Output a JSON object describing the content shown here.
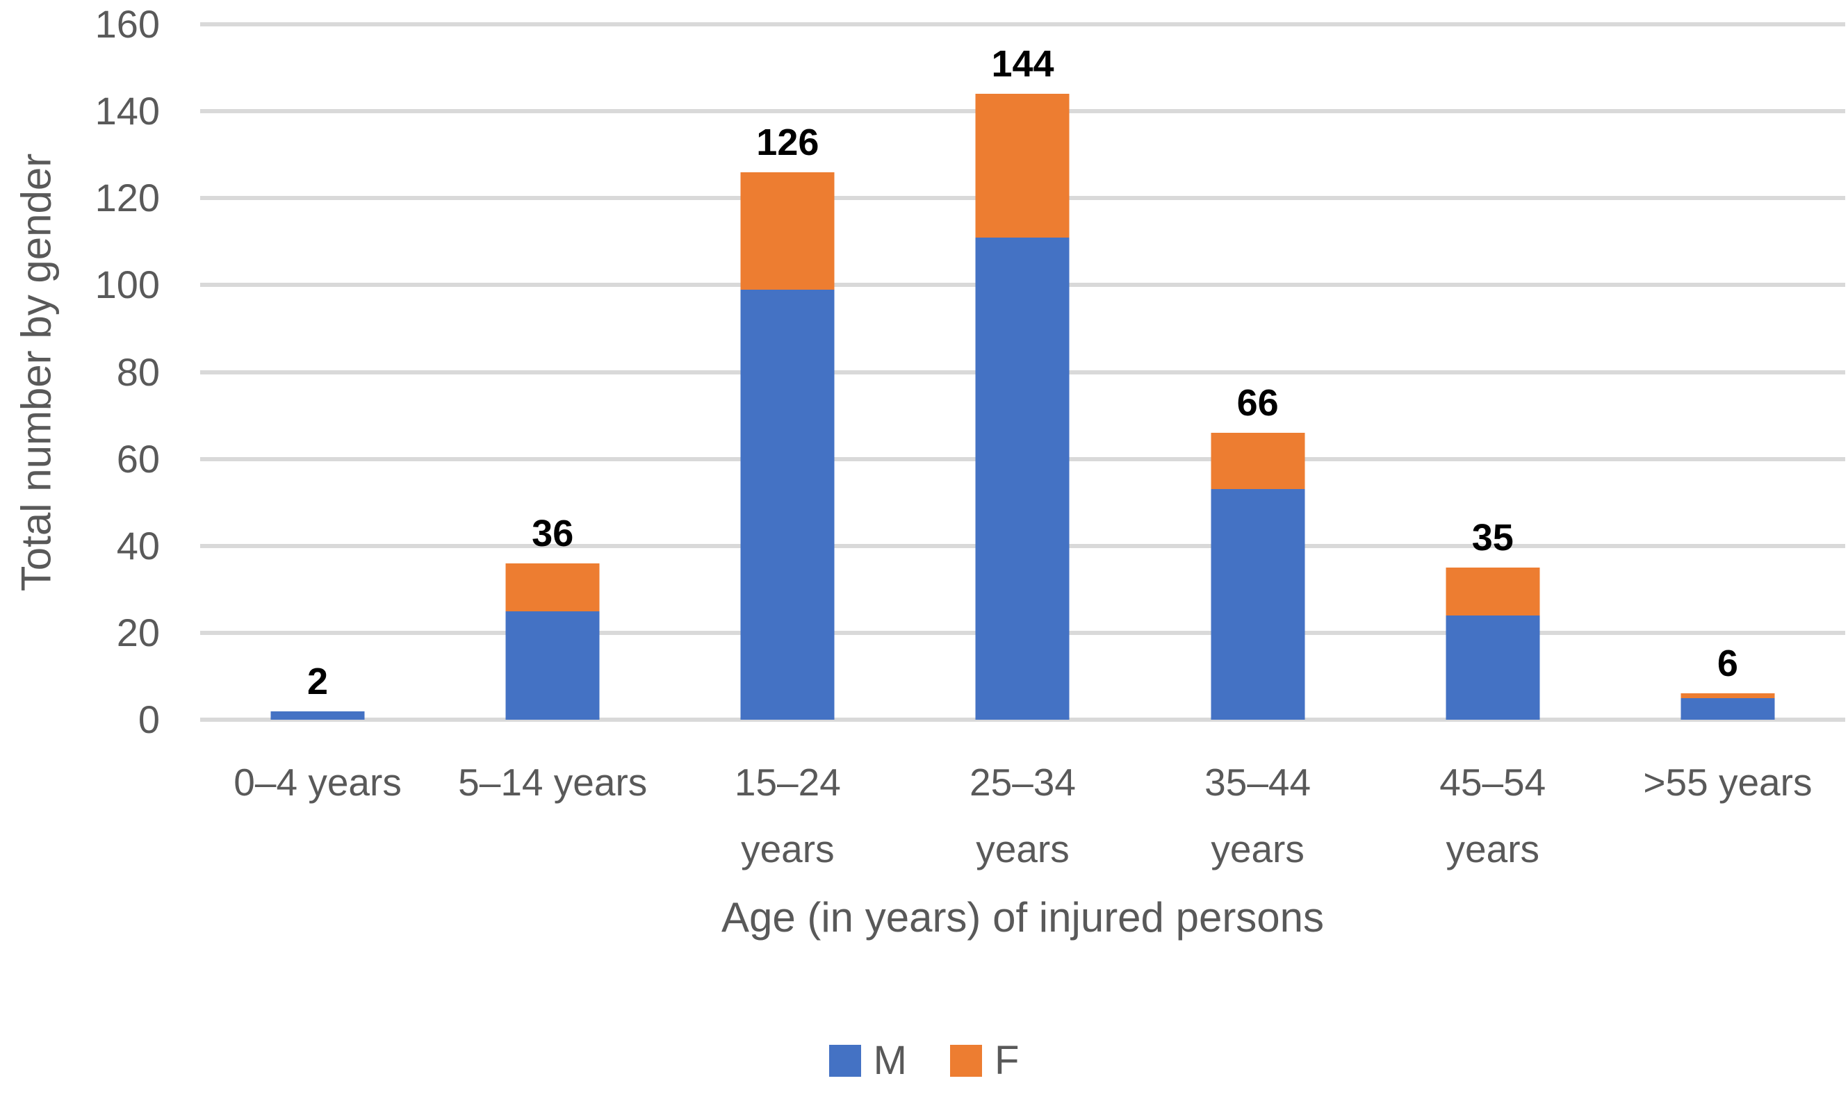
{
  "chart_data": {
    "type": "bar",
    "stacked": true,
    "xlabel": "Age (in years) of injured persons",
    "ylabel": "Total number by gender",
    "categories": [
      "0–4 years",
      "5–14 years",
      "15–24 years",
      "25–34 years",
      "35–44 years",
      "45–54 years",
      ">55 years"
    ],
    "category_tick_lines": [
      [
        "0–4 years"
      ],
      [
        "5–14 years"
      ],
      [
        "15–24",
        "years"
      ],
      [
        "25–34",
        "years"
      ],
      [
        "35–44",
        "years"
      ],
      [
        "45–54",
        "years"
      ],
      [
        ">55 years"
      ]
    ],
    "series": [
      {
        "name": "M",
        "color": "#4472C4",
        "values": [
          2,
          25,
          99,
          111,
          53,
          24,
          5
        ]
      },
      {
        "name": "F",
        "color": "#ED7D31",
        "values": [
          0,
          11,
          27,
          33,
          13,
          11,
          1
        ]
      }
    ],
    "totals": [
      2,
      36,
      126,
      144,
      66,
      35,
      6
    ],
    "total_labels": [
      "2",
      "36",
      "126",
      "144",
      "66",
      "35",
      "6"
    ],
    "ylim": [
      0,
      160
    ],
    "yticks": [
      0,
      20,
      40,
      60,
      80,
      100,
      120,
      140,
      160
    ],
    "ytick_labels": [
      "0",
      "20",
      "40",
      "60",
      "80",
      "100",
      "120",
      "140",
      "160"
    ],
    "grid": true,
    "legend_position": "bottom",
    "colors": {
      "gridline": "#D9D9D9",
      "axis_text": "#595959",
      "data_label": "#000000",
      "background": "#FFFFFF"
    }
  }
}
